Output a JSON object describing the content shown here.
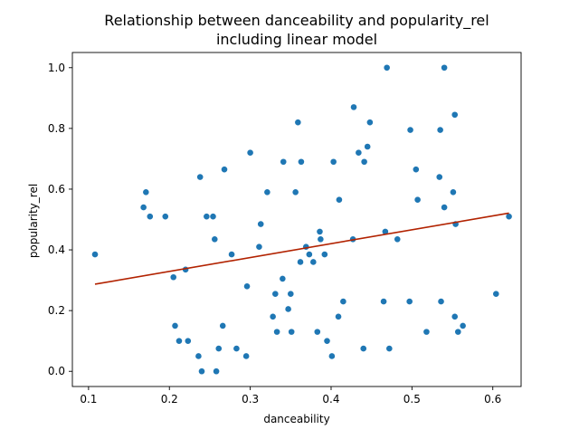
{
  "chart_data": {
    "type": "scatter",
    "title": "Relationship between danceability and popularity_rel\nincluding linear model",
    "title_lines": [
      "Relationship between danceability and popularity_rel",
      "including linear model"
    ],
    "xlabel": "danceability",
    "ylabel": "popularity_rel",
    "xlim": [
      0.08,
      0.635
    ],
    "ylim": [
      -0.05,
      1.05
    ],
    "x_ticks": [
      0.1,
      0.2,
      0.3,
      0.4,
      0.5,
      0.6
    ],
    "x_tick_labels": [
      "0.1",
      "0.2",
      "0.3",
      "0.4",
      "0.5",
      "0.6"
    ],
    "y_ticks": [
      0.0,
      0.2,
      0.4,
      0.6,
      0.8,
      1.0
    ],
    "y_tick_labels": [
      "0.0",
      "0.2",
      "0.4",
      "0.6",
      "0.8",
      "1.0"
    ],
    "grid": false,
    "legend": "none",
    "colors": {
      "points": "#1f77b4",
      "regression_line": "#b22200"
    },
    "series": [
      {
        "x": [
          0.108,
          0.168,
          0.171,
          0.176,
          0.195,
          0.205,
          0.207,
          0.212,
          0.22,
          0.223,
          0.236,
          0.238,
          0.24,
          0.246,
          0.254,
          0.256,
          0.258,
          0.261,
          0.266,
          0.268,
          0.277,
          0.283,
          0.295,
          0.296,
          0.3,
          0.311,
          0.313,
          0.321,
          0.328,
          0.331,
          0.333,
          0.34,
          0.341,
          0.347,
          0.35,
          0.351,
          0.356,
          0.359,
          0.362,
          0.363,
          0.369,
          0.373,
          0.378,
          0.383,
          0.386,
          0.387,
          0.392,
          0.395,
          0.401,
          0.403,
          0.409,
          0.41,
          0.415,
          0.427,
          0.428,
          0.434,
          0.44,
          0.441,
          0.445,
          0.448,
          0.465,
          0.467,
          0.469,
          0.472,
          0.482,
          0.497,
          0.498,
          0.505,
          0.507,
          0.518,
          0.534,
          0.535,
          0.536,
          0.54,
          0.54,
          0.551,
          0.553,
          0.553,
          0.554,
          0.557,
          0.563,
          0.604,
          0.62
        ],
        "y": [
          0.385,
          0.54,
          0.59,
          0.51,
          0.51,
          0.31,
          0.15,
          0.1,
          0.335,
          0.1,
          0.05,
          0.64,
          0.0,
          0.51,
          0.51,
          0.435,
          0.0,
          0.075,
          0.15,
          0.665,
          0.385,
          0.075,
          0.05,
          0.28,
          0.72,
          0.41,
          0.485,
          0.59,
          0.18,
          0.255,
          0.13,
          0.305,
          0.69,
          0.205,
          0.255,
          0.13,
          0.59,
          0.82,
          0.36,
          0.69,
          0.41,
          0.385,
          0.36,
          0.13,
          0.46,
          0.435,
          0.385,
          0.1,
          0.05,
          0.69,
          0.18,
          0.565,
          0.23,
          0.435,
          0.87,
          0.72,
          0.075,
          0.69,
          0.74,
          0.82,
          0.23,
          0.46,
          1.0,
          0.075,
          0.435,
          0.23,
          0.795,
          0.665,
          0.565,
          0.13,
          0.64,
          0.795,
          0.23,
          0.54,
          1.0,
          0.59,
          0.845,
          0.18,
          0.485,
          0.13,
          0.15,
          0.255,
          0.51
        ]
      }
    ],
    "regression_line": {
      "x": [
        0.108,
        0.62
      ],
      "y": [
        0.287,
        0.521
      ]
    }
  }
}
